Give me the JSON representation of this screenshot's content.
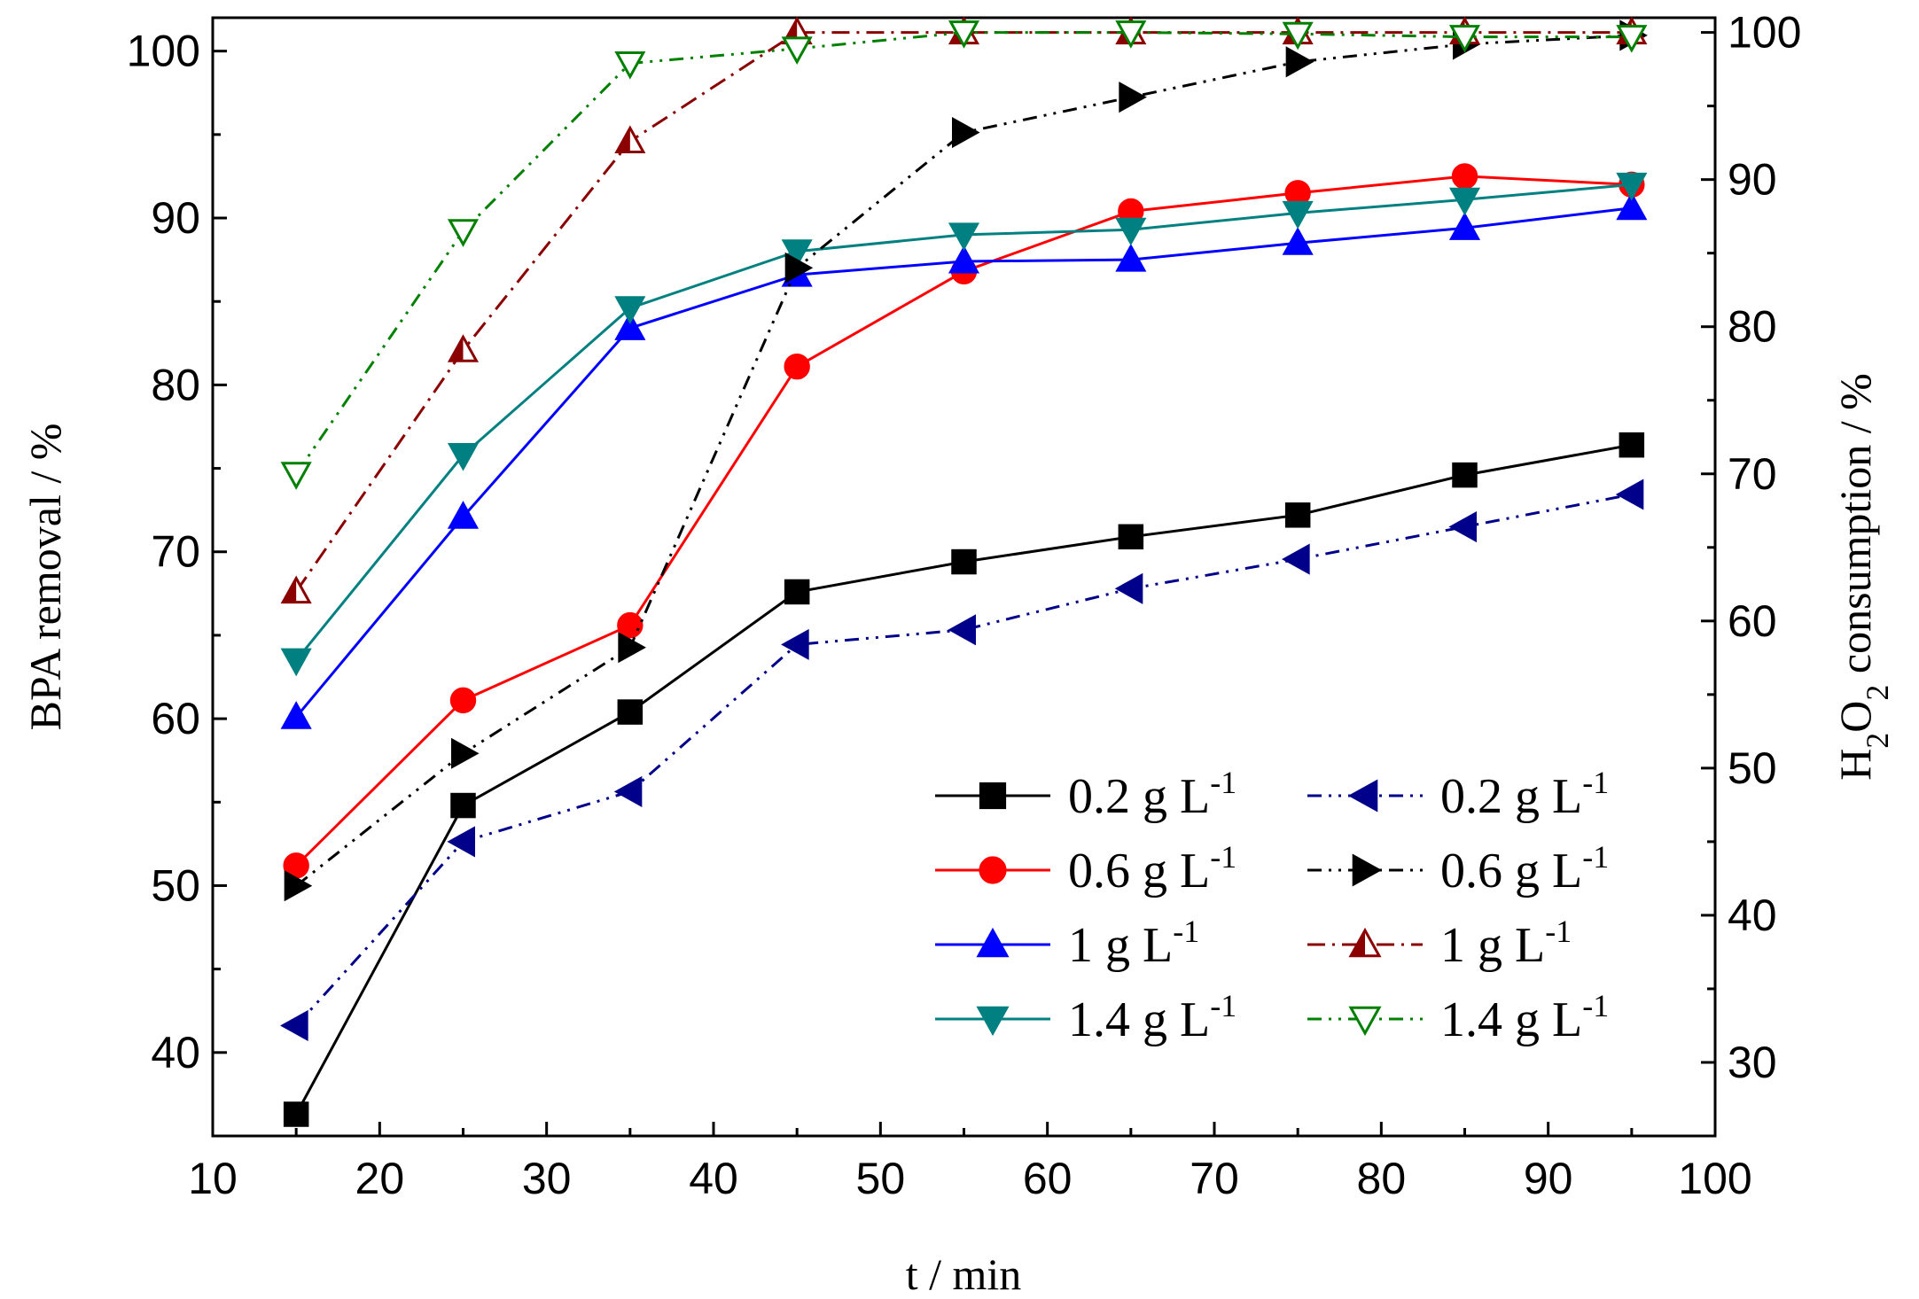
{
  "chart_data": {
    "type": "line",
    "xlabel": "t / min",
    "ylabel": "BPA removal  / %",
    "y2label_parts": [
      "H",
      "2",
      "O",
      "2",
      " consumption  / %"
    ],
    "xlim": [
      10,
      100
    ],
    "ylim": [
      35,
      102
    ],
    "y2lim": [
      25,
      101
    ],
    "xticks": [
      "10",
      "20",
      "30",
      "40",
      "50",
      "60",
      "70",
      "80",
      "90",
      "100"
    ],
    "yticks": [
      "40",
      "50",
      "60",
      "70",
      "80",
      "90",
      "100"
    ],
    "y2ticks": [
      "30",
      "40",
      "50",
      "60",
      "70",
      "80",
      "90",
      "100"
    ],
    "x": [
      15,
      25,
      35,
      45,
      55,
      65,
      75,
      85,
      95
    ],
    "series": [
      {
        "name": "0.2 g L",
        "unit_sup": "-1",
        "axis": "left",
        "metric": "BPA removal",
        "color": "#000000",
        "line": "solid",
        "marker": "square",
        "fill": "filled",
        "values": [
          36.3,
          54.8,
          60.4,
          67.6,
          69.4,
          70.9,
          72.2,
          74.6,
          76.4
        ]
      },
      {
        "name": "0.6 g L",
        "unit_sup": "-1",
        "axis": "left",
        "metric": "BPA removal",
        "color": "#ff0000",
        "line": "solid",
        "marker": "circle",
        "fill": "filled",
        "values": [
          51.2,
          61.1,
          65.6,
          81.1,
          86.8,
          90.4,
          91.5,
          92.5,
          92.0
        ]
      },
      {
        "name": "1 g L",
        "unit_sup": "-1",
        "axis": "left",
        "metric": "BPA removal",
        "color": "#0000ff",
        "line": "solid",
        "marker": "triangle-up",
        "fill": "filled",
        "values": [
          60.1,
          72.1,
          83.4,
          86.6,
          87.4,
          87.5,
          88.5,
          89.4,
          90.6
        ]
      },
      {
        "name": "1.4 g L",
        "unit_sup": "-1",
        "axis": "left",
        "metric": "BPA removal",
        "color": "#008080",
        "line": "solid",
        "marker": "triangle-down",
        "fill": "filled",
        "values": [
          63.5,
          75.8,
          84.6,
          88.0,
          89.0,
          89.3,
          90.3,
          91.1,
          92.0
        ]
      },
      {
        "name": "0.2 g L",
        "unit_sup": "-1",
        "axis": "right",
        "metric": "H2O2 consumption",
        "color": "#00008b",
        "line": "dashdotdot",
        "marker": "triangle-left",
        "fill": "filled",
        "values": [
          32.5,
          45.0,
          48.4,
          58.4,
          59.4,
          62.2,
          64.2,
          66.4,
          68.6
        ]
      },
      {
        "name": "0.6 g L",
        "unit_sup": "-1",
        "axis": "right",
        "metric": "H2O2 consumption",
        "color": "#000000",
        "line": "dashdotdot",
        "marker": "triangle-right",
        "fill": "filled",
        "values": [
          42.0,
          51.0,
          58.2,
          84.0,
          93.2,
          95.6,
          98.0,
          99.2,
          99.8
        ]
      },
      {
        "name": "1 g L",
        "unit_sup": "-1",
        "axis": "right",
        "metric": "H2O2 consumption",
        "color": "#8b0000",
        "line": "dashdot",
        "marker": "triangle-up",
        "fill": "half",
        "values": [
          62.0,
          78.4,
          92.6,
          100.0,
          100.0,
          100.0,
          100.0,
          100.0,
          100.0
        ]
      },
      {
        "name": "1.4 g L",
        "unit_sup": "-1",
        "axis": "right",
        "metric": "H2O2 consumption",
        "color": "#008000",
        "line": "dashdotdot",
        "marker": "triangle-down",
        "fill": "open",
        "values": [
          70.0,
          86.5,
          97.9,
          98.9,
          100.0,
          100.0,
          99.9,
          99.7,
          99.7
        ]
      }
    ],
    "legend": {
      "placement": "lower-right",
      "columns": 2
    }
  }
}
